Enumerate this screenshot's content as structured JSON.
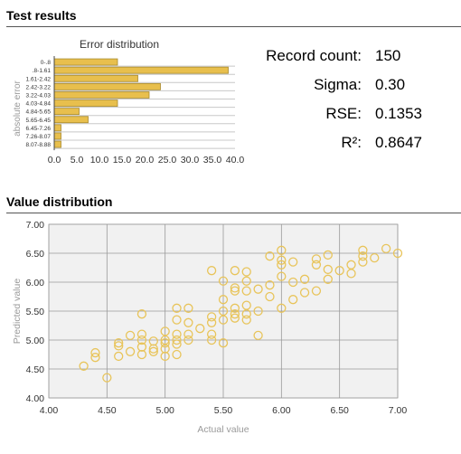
{
  "sections": {
    "test_results_title": "Test results",
    "value_distribution_title": "Value distribution"
  },
  "stats": {
    "record_count_label": "Record count:",
    "record_count_value": "150",
    "sigma_label": "Sigma:",
    "sigma_value": "0.30",
    "rse_label": "RSE:",
    "rse_value": "0.1353",
    "r2_label": "R²:",
    "r2_value": "0.8647"
  },
  "colors": {
    "bar_fill": "#e8bf4d",
    "bar_stroke": "#a88a2e",
    "point_stroke": "#e8c45a",
    "grid": "#9a9a9a",
    "plot_bg": "#f1f1f1",
    "axis_label": "#9a9a9a"
  },
  "chart_data": [
    {
      "type": "bar",
      "orientation": "horizontal",
      "title": "Error distribution",
      "ylabel": "absolute error",
      "xlabel": "",
      "categories": [
        "0-.8",
        ".8-1.61",
        "1.61-2.42",
        "2.42-3.22",
        "3.22-4.03",
        "4.03-4.84",
        "4.84-5.65",
        "5.65-6.45",
        "6.45-7.26",
        "7.26-8.07",
        "8.07-8.88"
      ],
      "values": [
        14,
        38.5,
        18.5,
        23.5,
        21,
        14,
        5.5,
        7.5,
        1.5,
        1.5,
        1.5
      ],
      "xlim": [
        0,
        40
      ],
      "xticks": [
        "0.0",
        "5.0",
        "10.0",
        "15.0",
        "20.0",
        "25.0",
        "30.0",
        "35.0",
        "40.0"
      ],
      "grid": false
    },
    {
      "type": "scatter",
      "title": "",
      "xlabel": "Actual value",
      "ylabel": "Predicted value",
      "xlim": [
        4.0,
        7.0
      ],
      "ylim": [
        4.0,
        7.0
      ],
      "xticks": [
        "4.00",
        "4.50",
        "5.00",
        "5.50",
        "6.00",
        "6.50",
        "7.00"
      ],
      "yticks": [
        "4.00",
        "4.50",
        "5.00",
        "5.50",
        "6.00",
        "6.50",
        "7.00"
      ],
      "grid": true,
      "points": [
        [
          4.3,
          4.55
        ],
        [
          4.4,
          4.78
        ],
        [
          4.4,
          4.7
        ],
        [
          4.5,
          4.35
        ],
        [
          4.6,
          4.9
        ],
        [
          4.6,
          4.95
        ],
        [
          4.6,
          4.72
        ],
        [
          4.7,
          4.8
        ],
        [
          4.7,
          5.08
        ],
        [
          4.8,
          5.45
        ],
        [
          4.8,
          5.1
        ],
        [
          4.8,
          5.0
        ],
        [
          4.8,
          4.88
        ],
        [
          4.8,
          4.75
        ],
        [
          4.9,
          4.98
        ],
        [
          4.9,
          4.85
        ],
        [
          4.9,
          4.8
        ],
        [
          5.0,
          5.15
        ],
        [
          5.0,
          5.0
        ],
        [
          5.0,
          4.95
        ],
        [
          5.0,
          4.85
        ],
        [
          5.0,
          4.72
        ],
        [
          5.1,
          5.55
        ],
        [
          5.1,
          5.35
        ],
        [
          5.1,
          5.1
        ],
        [
          5.1,
          5.0
        ],
        [
          5.1,
          4.93
        ],
        [
          5.1,
          4.75
        ],
        [
          5.2,
          5.55
        ],
        [
          5.2,
          5.3
        ],
        [
          5.2,
          5.1
        ],
        [
          5.2,
          5.0
        ],
        [
          5.3,
          5.2
        ],
        [
          5.4,
          6.2
        ],
        [
          5.4,
          5.4
        ],
        [
          5.4,
          5.3
        ],
        [
          5.4,
          5.1
        ],
        [
          5.4,
          5.0
        ],
        [
          5.5,
          6.02
        ],
        [
          5.5,
          5.7
        ],
        [
          5.5,
          5.5
        ],
        [
          5.5,
          5.35
        ],
        [
          5.5,
          4.95
        ],
        [
          5.6,
          6.2
        ],
        [
          5.6,
          5.9
        ],
        [
          5.6,
          5.85
        ],
        [
          5.6,
          5.55
        ],
        [
          5.6,
          5.45
        ],
        [
          5.6,
          5.38
        ],
        [
          5.7,
          6.18
        ],
        [
          5.7,
          6.02
        ],
        [
          5.7,
          5.85
        ],
        [
          5.7,
          5.6
        ],
        [
          5.7,
          5.45
        ],
        [
          5.7,
          5.35
        ],
        [
          5.8,
          5.88
        ],
        [
          5.8,
          5.5
        ],
        [
          5.8,
          5.08
        ],
        [
          5.9,
          6.45
        ],
        [
          5.9,
          5.95
        ],
        [
          5.9,
          5.75
        ],
        [
          6.0,
          6.55
        ],
        [
          6.0,
          6.38
        ],
        [
          6.0,
          6.3
        ],
        [
          6.0,
          6.1
        ],
        [
          6.0,
          5.55
        ],
        [
          6.1,
          6.35
        ],
        [
          6.1,
          6.0
        ],
        [
          6.1,
          5.7
        ],
        [
          6.2,
          6.05
        ],
        [
          6.2,
          5.82
        ],
        [
          6.3,
          6.4
        ],
        [
          6.3,
          6.3
        ],
        [
          6.3,
          5.85
        ],
        [
          6.4,
          6.47
        ],
        [
          6.4,
          6.22
        ],
        [
          6.4,
          6.05
        ],
        [
          6.5,
          6.2
        ],
        [
          6.6,
          6.3
        ],
        [
          6.6,
          6.15
        ],
        [
          6.7,
          6.55
        ],
        [
          6.7,
          6.45
        ],
        [
          6.7,
          6.35
        ],
        [
          6.8,
          6.42
        ],
        [
          6.9,
          6.58
        ],
        [
          7.0,
          6.5
        ]
      ]
    }
  ]
}
